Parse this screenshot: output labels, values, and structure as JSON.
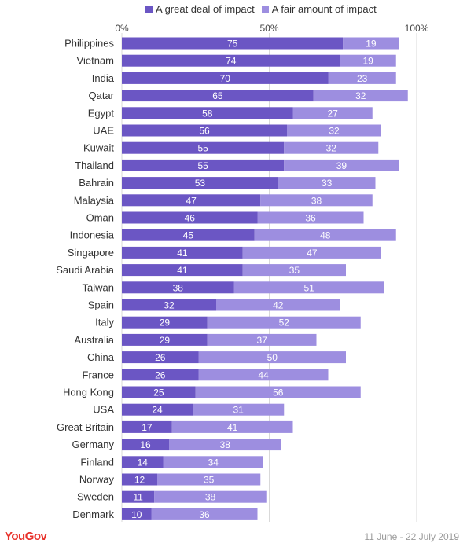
{
  "brand": "YouGov",
  "period": "11 June - 22 July 2019",
  "chart_data": {
    "type": "bar",
    "orientation": "horizontal",
    "stacked": true,
    "categories": [
      "Philippines",
      "Vietnam",
      "India",
      "Qatar",
      "Egypt",
      "UAE",
      "Kuwait",
      "Thailand",
      "Bahrain",
      "Malaysia",
      "Oman",
      "Indonesia",
      "Singapore",
      "Saudi Arabia",
      "Taiwan",
      "Spain",
      "Italy",
      "Australia",
      "China",
      "France",
      "Hong Kong",
      "USA",
      "Great Britain",
      "Germany",
      "Finland",
      "Norway",
      "Sweden",
      "Denmark"
    ],
    "series": [
      {
        "name": "A great deal of impact",
        "color": "#6b56c4",
        "values": [
          75,
          74,
          70,
          65,
          58,
          56,
          55,
          55,
          53,
          47,
          46,
          45,
          41,
          41,
          38,
          32,
          29,
          29,
          26,
          26,
          25,
          24,
          17,
          16,
          14,
          12,
          11,
          10
        ]
      },
      {
        "name": "A fair amount of impact",
        "color": "#9d8ee0",
        "values": [
          19,
          19,
          23,
          32,
          27,
          32,
          32,
          39,
          33,
          38,
          36,
          48,
          47,
          35,
          51,
          42,
          52,
          37,
          50,
          44,
          56,
          31,
          41,
          38,
          34,
          35,
          38,
          36
        ]
      }
    ],
    "xticks": [
      "0%",
      "50%",
      "100%"
    ],
    "xlim": [
      0,
      100
    ],
    "grid": true,
    "legend_position": "top"
  }
}
